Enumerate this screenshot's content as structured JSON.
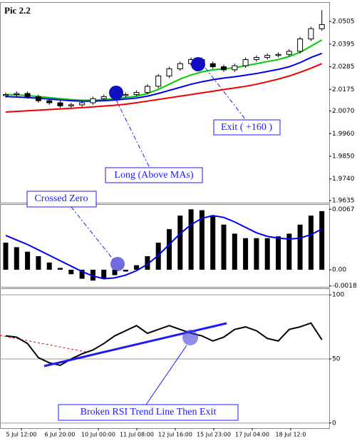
{
  "title": "Pic 2.2",
  "x_labels": [
    "5 Jul 12:00",
    "6 Jul 20:00",
    "10 Jul 00:00",
    "11 Jul 08:00",
    "12 Jul 16:00",
    "15 Jul 23:00",
    "17 Jul 04:00",
    "18 Jul 12:0"
  ],
  "annotations": {
    "long": "Long (Above MAs)",
    "exit": "Exit ( +160 )",
    "crossed": "Crossed Zero",
    "rsi": "Broken RSI Trend Line Then Exit"
  },
  "chart_data": [
    {
      "type": "candlestick",
      "color": "#ffffff",
      "open": [
        2.0145,
        2.015,
        2.0155,
        2.014,
        2.012,
        2.011,
        2.0095,
        2.01,
        2.011,
        2.013,
        2.014,
        2.0145,
        2.015,
        2.016,
        2.019,
        2.024,
        2.0275,
        2.03,
        2.032,
        2.03,
        2.0285,
        2.027,
        2.029,
        2.032,
        2.033,
        2.034,
        2.0345,
        2.036,
        2.042,
        2.047
      ],
      "high": [
        2.016,
        2.0165,
        2.0165,
        2.015,
        2.013,
        2.012,
        2.011,
        2.012,
        2.014,
        2.015,
        2.0155,
        2.016,
        2.017,
        2.02,
        2.025,
        2.0285,
        2.031,
        2.033,
        2.033,
        2.031,
        2.0295,
        2.03,
        2.033,
        2.034,
        2.035,
        2.0355,
        2.037,
        2.043,
        2.048,
        2.056
      ],
      "low": [
        2.0135,
        2.014,
        2.013,
        2.011,
        2.01,
        2.0085,
        2.0085,
        2.009,
        2.01,
        2.012,
        2.013,
        2.0135,
        2.014,
        2.015,
        2.018,
        2.023,
        2.0265,
        2.029,
        2.029,
        2.0275,
        2.026,
        2.026,
        2.028,
        2.031,
        2.032,
        2.033,
        2.0335,
        2.035,
        2.041,
        2.046
      ],
      "close": [
        2.015,
        2.0155,
        2.014,
        2.012,
        2.011,
        2.0095,
        2.01,
        2.011,
        2.013,
        2.014,
        2.0145,
        2.015,
        2.016,
        2.019,
        2.024,
        2.0275,
        2.03,
        2.032,
        2.03,
        2.0285,
        2.027,
        2.029,
        2.032,
        2.033,
        2.034,
        2.0345,
        2.036,
        2.042,
        2.047,
        2.049
      ],
      "series": [
        {
          "color": "#00cc00",
          "values": [
            2.015,
            2.0148,
            2.0145,
            2.014,
            2.0135,
            2.013,
            2.0125,
            2.0122,
            2.0122,
            2.0125,
            2.013,
            2.0135,
            2.0142,
            2.0155,
            2.0175,
            2.02,
            2.0225,
            2.0245,
            2.026,
            2.027,
            2.0275,
            2.028,
            2.029,
            2.03,
            2.031,
            2.032,
            2.0335,
            2.0355,
            2.0385,
            2.0415
          ]
        },
        {
          "color": "#0000ee",
          "values": [
            2.014,
            2.0138,
            2.0135,
            2.0132,
            2.0128,
            2.0124,
            2.012,
            2.0118,
            2.0118,
            2.012,
            2.0123,
            2.0128,
            2.0133,
            2.0142,
            2.0155,
            2.017,
            2.0185,
            2.02,
            2.0212,
            2.0222,
            2.023,
            2.0236,
            2.0244,
            2.0252,
            2.0262,
            2.0272,
            2.0285,
            2.0305,
            2.033,
            2.035
          ]
        },
        {
          "color": "#ee0000",
          "values": [
            2.0065,
            2.0068,
            2.0071,
            2.0074,
            2.0077,
            2.008,
            2.0083,
            2.0086,
            2.009,
            2.0094,
            2.0098,
            2.0103,
            2.011,
            2.0118,
            2.0126,
            2.0134,
            2.0142,
            2.015,
            2.0158,
            2.0166,
            2.0174,
            2.0182,
            2.019,
            2.02,
            2.0212,
            2.0225,
            2.024,
            2.0258,
            2.0278,
            2.03
          ]
        }
      ],
      "ylim": [
        1.9628,
        2.0592
      ],
      "yticks": [
        2.0505,
        2.0395,
        2.0285,
        2.0175,
        {
          "value": 2.007,
          "label": "2.0070"
        },
        {
          "value": 1.996,
          "label": "1.9960"
        },
        {
          "value": 1.985,
          "label": "1.9850"
        },
        {
          "value": 1.974,
          "label": "1.9740"
        },
        1.9635
      ],
      "grid": false
    },
    {
      "type": "bar",
      "color": "#000000",
      "values": [
        0.003,
        0.0025,
        0.002,
        0.0015,
        0.0008,
        0.0002,
        -0.0005,
        -0.001,
        -0.0012,
        -0.001,
        -0.0006,
        -0.0002,
        0.0005,
        0.0015,
        0.003,
        0.0045,
        0.006,
        0.0067,
        0.0066,
        0.006,
        0.005,
        0.004,
        0.0035,
        0.0035,
        0.0035,
        0.0037,
        0.004,
        0.005,
        0.006,
        0.0065
      ],
      "series": [
        {
          "color": "#0000ee",
          "values": [
            0.0038,
            0.0033,
            0.0028,
            0.0022,
            0.0016,
            0.001,
            0.0004,
            -0.0002,
            -0.0007,
            -0.001,
            -0.0009,
            -0.0006,
            -0.0001,
            0.0006,
            0.0016,
            0.0028,
            0.004,
            0.005,
            0.0057,
            0.006,
            0.0058,
            0.0053,
            0.0047,
            0.0041,
            0.0037,
            0.0035,
            0.0034,
            0.0035,
            0.0039,
            0.0045
          ]
        }
      ],
      "ylim": [
        -0.0019,
        0.0072
      ],
      "yticks": [
        0.0067,
        {
          "value": 0,
          "label": "0.00"
        },
        -0.0018
      ],
      "grid": false
    },
    {
      "type": "line",
      "series": [
        {
          "color": "#000000",
          "values": [
            68,
            67,
            62,
            51,
            47,
            45,
            50,
            54,
            57,
            62,
            68,
            72,
            76,
            70,
            73,
            76,
            73,
            70,
            68,
            64,
            67,
            73,
            75,
            72,
            66,
            64,
            73,
            75,
            78,
            65
          ]
        }
      ],
      "ylim": [
        -4,
        104
      ],
      "yticks": [
        100,
        50,
        0
      ],
      "grid": true
    }
  ]
}
